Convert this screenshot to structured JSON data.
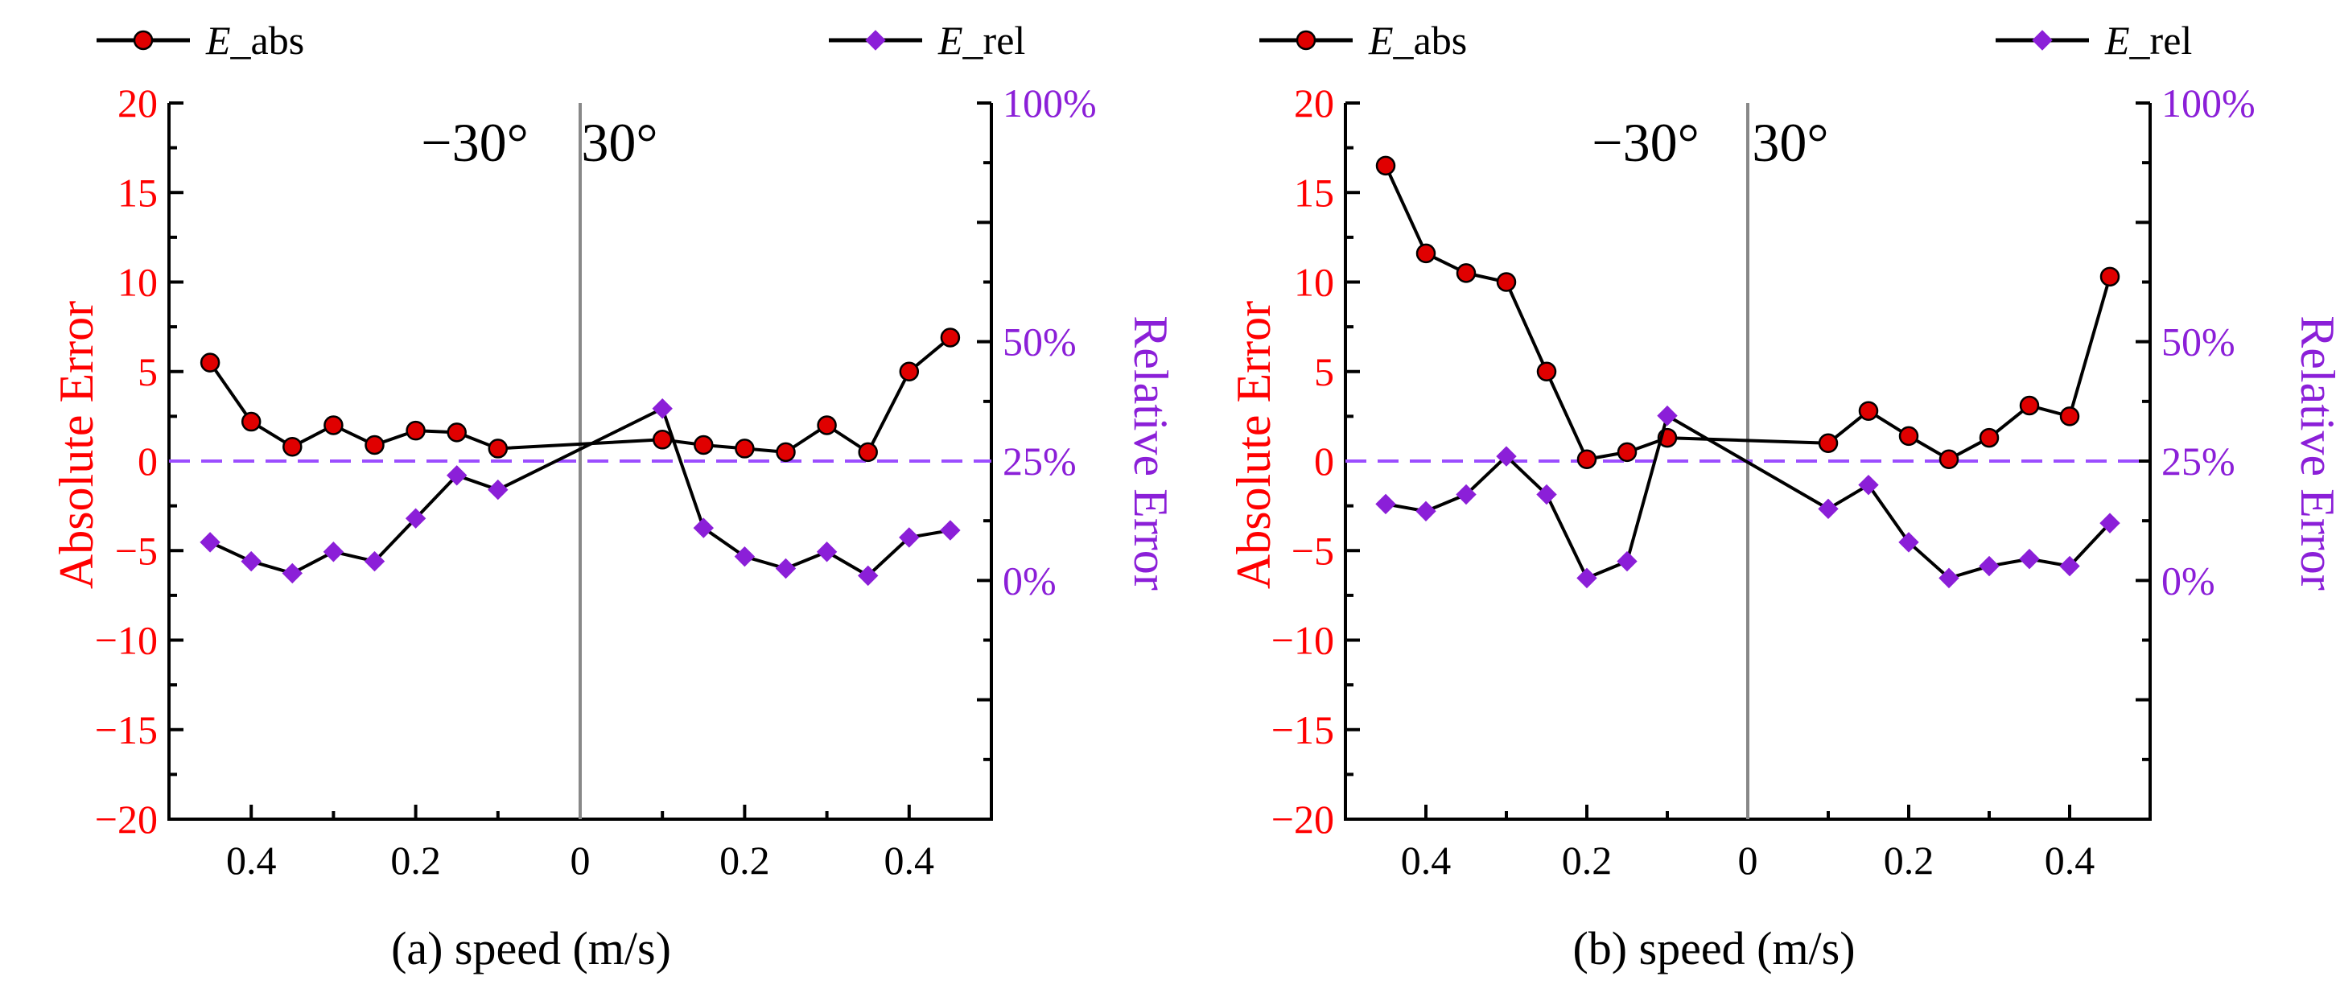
{
  "chart_data": [
    {
      "id": "a",
      "type": "line",
      "caption": "(a) speed (m/s)",
      "x_categories": [
        "0.45",
        "0.40",
        "0.35",
        "0.30",
        "0.25",
        "0.20",
        "0.15",
        "0.10",
        "0.10",
        "0.15",
        "0.20",
        "0.25",
        "0.30",
        "0.35",
        "0.40",
        "0.45"
      ],
      "x_tick_values": [
        -0.4,
        -0.2,
        0,
        0.2,
        0.4
      ],
      "x_tick_labels": [
        "0.4",
        "0.2",
        "0",
        "0.2",
        "0.4"
      ],
      "x_positions": [
        -0.45,
        -0.4,
        -0.35,
        -0.3,
        -0.25,
        -0.2,
        -0.15,
        -0.1,
        0.1,
        0.15,
        0.2,
        0.25,
        0.3,
        0.35,
        0.4,
        0.45
      ],
      "xlim": [
        -0.5,
        0.5
      ],
      "left_axis": {
        "label": "Absolute Error",
        "ylim": [
          -20,
          20
        ],
        "ticks": [
          -20,
          -15,
          -10,
          -5,
          0,
          5,
          10,
          15,
          20
        ],
        "tick_labels": [
          "−20",
          "−15",
          "−10",
          "−5",
          "0",
          "5",
          "10",
          "15",
          "20"
        ],
        "color": "#ff0000"
      },
      "right_axis": {
        "label": "Relative Error",
        "ylim": [
          -50,
          100
        ],
        "ticks": [
          0,
          25,
          50,
          100
        ],
        "tick_labels": [
          "0%",
          "25%",
          "50%",
          "100%"
        ],
        "color": "#8b1fd8"
      },
      "series": [
        {
          "name": "E_abs",
          "axis": "left",
          "marker": "circle",
          "color": "#e00000",
          "values": [
            5.5,
            2.2,
            0.8,
            2.0,
            0.9,
            1.7,
            1.6,
            0.7,
            1.2,
            0.9,
            0.7,
            0.5,
            2.0,
            0.5,
            5.0,
            6.9
          ]
        },
        {
          "name": "E_rel",
          "axis": "right",
          "marker": "diamond",
          "color": "#8b1fd8",
          "values": [
            8,
            4,
            1.5,
            6,
            4,
            13,
            22,
            19,
            36,
            11,
            5,
            2.5,
            6,
            1,
            9,
            10.5
          ]
        }
      ],
      "reference_line": {
        "axis": "right",
        "value": 25,
        "style": "dashed",
        "color": "#9b4dff"
      },
      "divider": {
        "x": 0
      },
      "annotations": [
        "−30°",
        "30°"
      ]
    },
    {
      "id": "b",
      "type": "line",
      "caption": "(b) speed (m/s)",
      "x_categories": [
        "0.45",
        "0.40",
        "0.35",
        "0.30",
        "0.25",
        "0.20",
        "0.15",
        "0.10",
        "0.10",
        "0.15",
        "0.20",
        "0.25",
        "0.30",
        "0.35",
        "0.40",
        "0.45"
      ],
      "x_tick_values": [
        -0.4,
        -0.2,
        0,
        0.2,
        0.4
      ],
      "x_tick_labels": [
        "0.4",
        "0.2",
        "0",
        "0.2",
        "0.4"
      ],
      "x_positions": [
        -0.45,
        -0.4,
        -0.35,
        -0.3,
        -0.25,
        -0.2,
        -0.15,
        -0.1,
        0.1,
        0.15,
        0.2,
        0.25,
        0.3,
        0.35,
        0.4,
        0.45
      ],
      "xlim": [
        -0.5,
        0.5
      ],
      "left_axis": {
        "label": "Absolute Error",
        "ylim": [
          -20,
          20
        ],
        "ticks": [
          -20,
          -15,
          -10,
          -5,
          0,
          5,
          10,
          15,
          20
        ],
        "tick_labels": [
          "−20",
          "−15",
          "−10",
          "−5",
          "0",
          "5",
          "10",
          "15",
          "20"
        ],
        "color": "#ff0000"
      },
      "right_axis": {
        "label": "Relative Error",
        "ylim": [
          -50,
          100
        ],
        "ticks": [
          0,
          25,
          50,
          100
        ],
        "tick_labels": [
          "0%",
          "25%",
          "50%",
          "100%"
        ],
        "color": "#8b1fd8"
      },
      "series": [
        {
          "name": "E_abs",
          "axis": "left",
          "marker": "circle",
          "color": "#e00000",
          "values": [
            16.5,
            11.6,
            10.5,
            10.0,
            5.0,
            0.1,
            0.5,
            1.3,
            1.0,
            2.8,
            1.4,
            0.1,
            1.3,
            3.1,
            2.5,
            10.3
          ]
        },
        {
          "name": "E_rel",
          "axis": "right",
          "marker": "diamond",
          "color": "#8b1fd8",
          "values": [
            16,
            14.5,
            18,
            26,
            18,
            0.5,
            4,
            34.5,
            15,
            20,
            8,
            0.5,
            3,
            4.5,
            3,
            12
          ]
        }
      ],
      "reference_line": {
        "axis": "right",
        "value": 25,
        "style": "dashed",
        "color": "#9b4dff"
      },
      "divider": {
        "x": 0
      },
      "annotations": [
        "−30°",
        "30°"
      ]
    }
  ],
  "legend": {
    "items": [
      {
        "name": "E_abs",
        "italic": "E",
        "suffix": "_abs",
        "marker": "circle",
        "color": "#e00000"
      },
      {
        "name": "E_rel",
        "italic": "E",
        "suffix": "_rel",
        "marker": "diamond",
        "color": "#8b1fd8"
      }
    ]
  }
}
